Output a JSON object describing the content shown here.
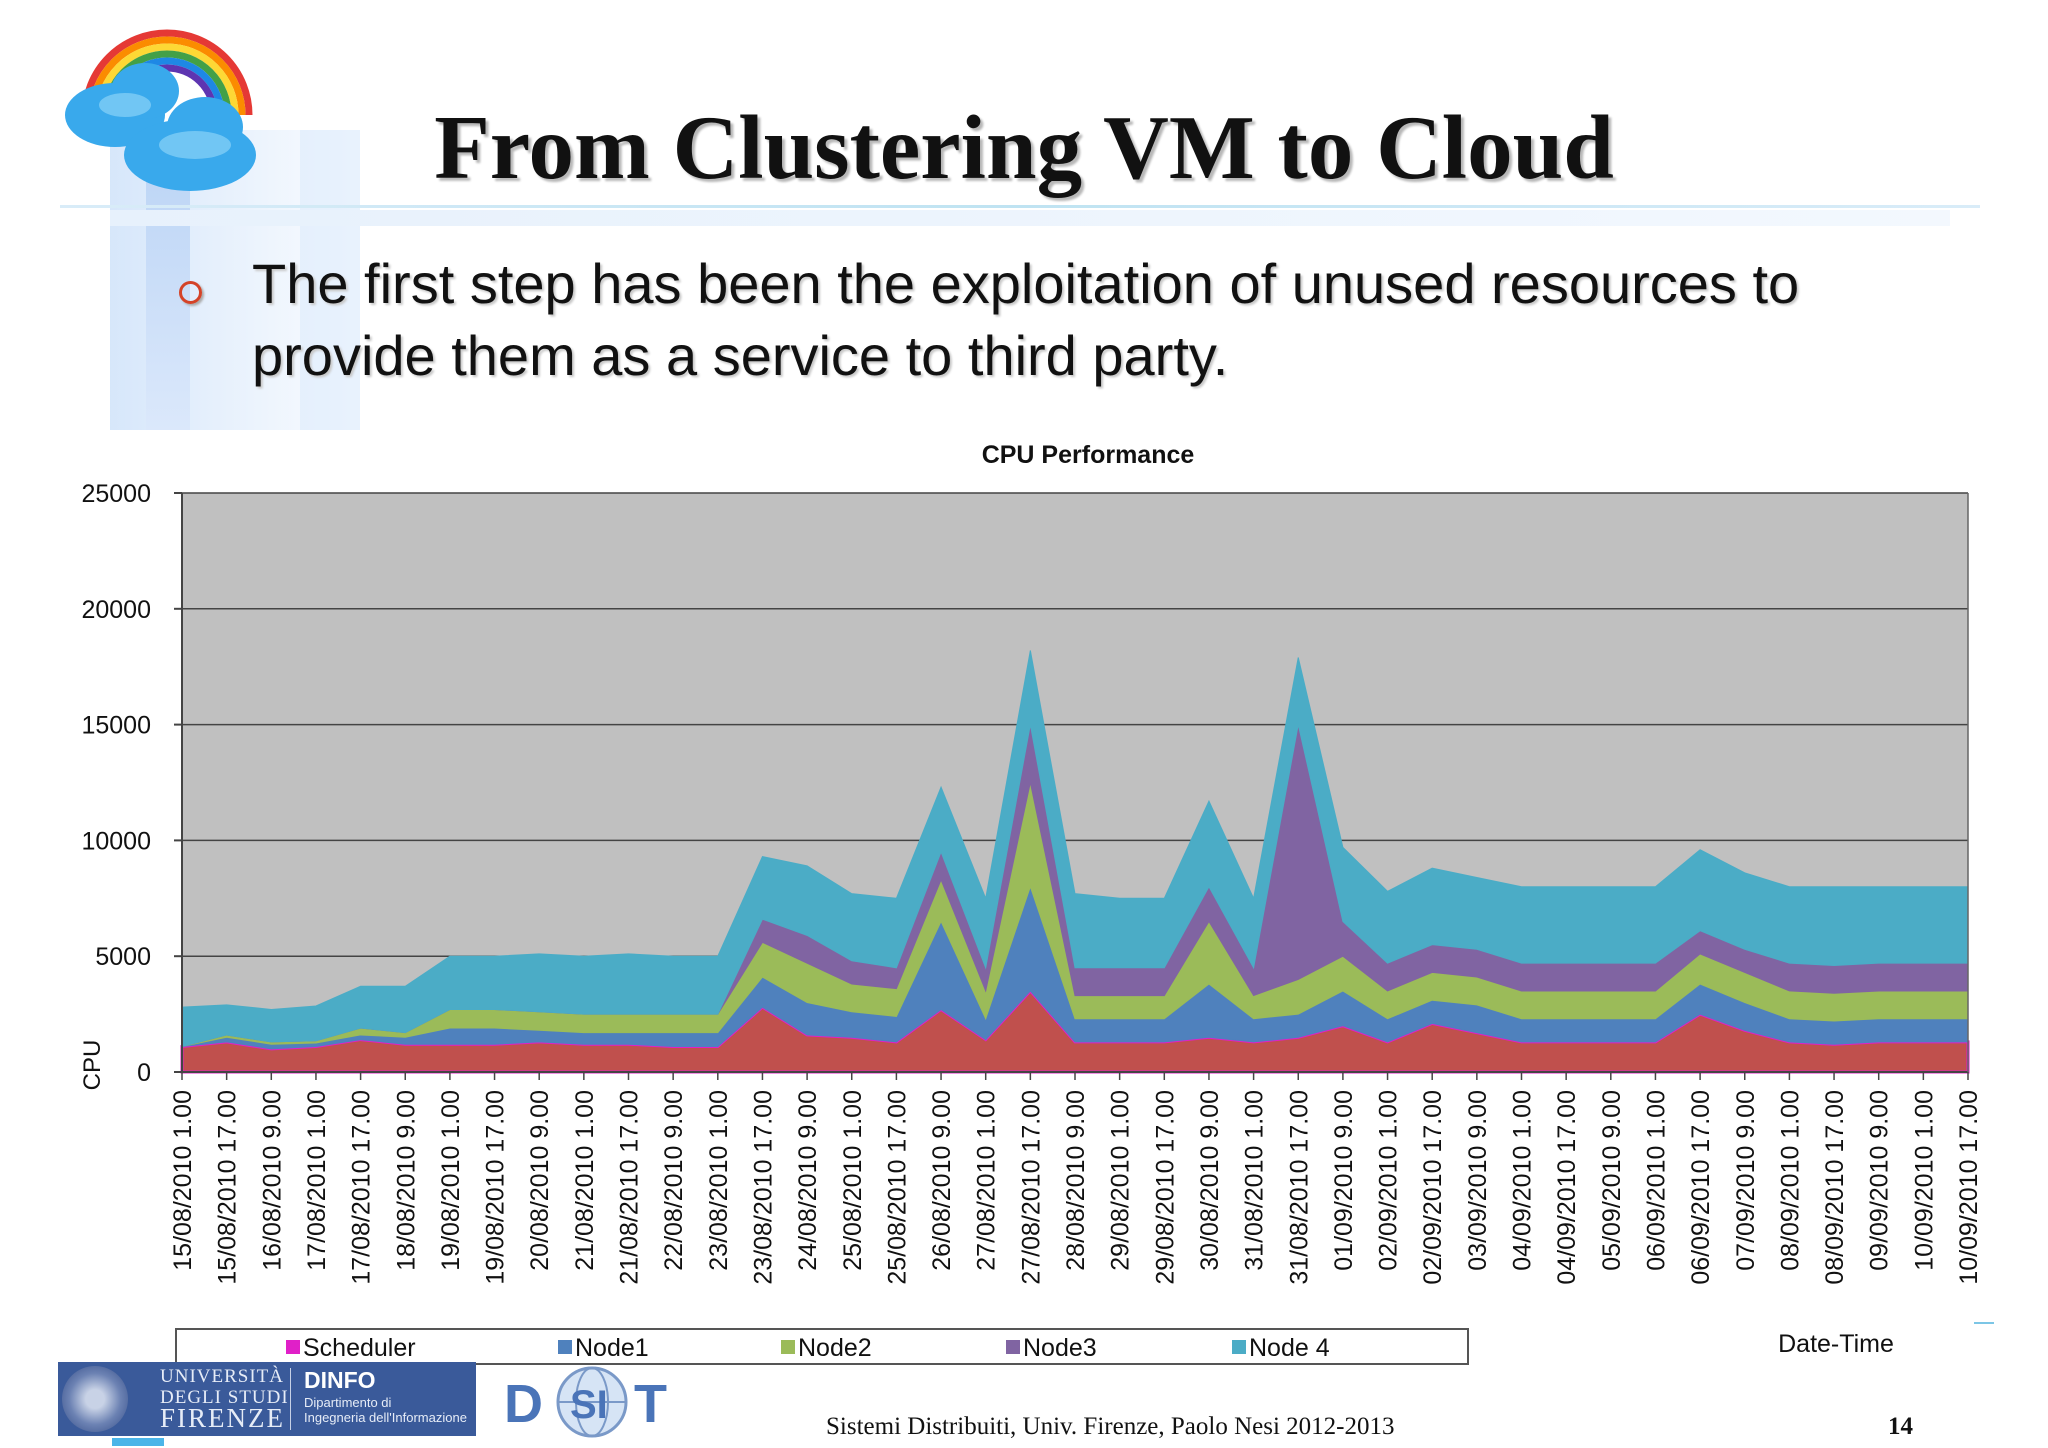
{
  "slide": {
    "title": "From Clustering VM to Cloud",
    "bullet": "The first step has been the exploitation of unused resources to provide them as a service to third party.",
    "footer": "Sistemi Distribuiti, Univ. Firenze, Paolo Nesi 2012-2013",
    "page_number": "14",
    "logos": {
      "unifi_line1": "UNIVERSITÀ",
      "unifi_line2": "DEGLI STUDI",
      "unifi_line3": "FIRENZE",
      "dinfo_title": "DINFO",
      "dinfo_sub1": "Dipartimento di",
      "dinfo_sub2": "Ingegneria dell'Informazione",
      "disit_left": "D",
      "disit_mid": "SI",
      "disit_right": "T"
    },
    "icons": [
      "rainbow-cloud-logo",
      "university-seal-icon",
      "disit-globe-icon"
    ]
  },
  "chart_data": {
    "type": "area",
    "stacked": true,
    "title": "CPU Performance",
    "ylabel": "CPU",
    "xlabel": "Date-Time",
    "ylim": [
      0,
      25000
    ],
    "yticks": [
      0,
      5000,
      10000,
      15000,
      20000,
      25000
    ],
    "grid": true,
    "legend_position": "bottom",
    "x_tick_labels": [
      "15/08/2010 1.00",
      "15/08/2010 17.00",
      "16/08/2010 9.00",
      "17/08/2010 1.00",
      "17/08/2010 17.00",
      "18/08/2010 9.00",
      "19/08/2010 1.00",
      "19/08/2010 17.00",
      "20/08/2010 9.00",
      "21/08/2010 1.00",
      "21/08/2010 17.00",
      "22/08/2010 9.00",
      "23/08/2010 1.00",
      "23/08/2010 17.00",
      "24/08/2010 9.00",
      "25/08/2010 1.00",
      "25/08/2010 17.00",
      "26/08/2010 9.00",
      "27/08/2010 1.00",
      "27/08/2010 17.00",
      "28/08/2010 9.00",
      "29/08/2010 1.00",
      "29/08/2010 17.00",
      "30/08/2010 9.00",
      "31/08/2010 1.00",
      "31/08/2010 17.00",
      "01/09/2010 9.00",
      "02/09/2010 1.00",
      "02/09/2010 17.00",
      "03/09/2010 9.00",
      "04/09/2010 1.00",
      "04/09/2010 17.00",
      "05/09/2010 9.00",
      "06/09/2010 1.00",
      "06/09/2010 17.00",
      "07/09/2010 9.00",
      "08/09/2010 1.00",
      "08/09/2010 17.00",
      "09/09/2010 9.00",
      "10/09/2010 1.00",
      "10/09/2010 17.00"
    ],
    "series": [
      {
        "name": "Scheduler",
        "color": "#e020c8",
        "fill": "#c0504d",
        "values": [
          1100,
          1300,
          1000,
          1100,
          1400,
          1200,
          1200,
          1200,
          1300,
          1200,
          1200,
          1100,
          1100,
          2800,
          1600,
          1500,
          1300,
          2700,
          1400,
          3500,
          1300,
          1300,
          1300,
          1500,
          1300,
          1500,
          2000,
          1300,
          2100,
          1700,
          1300,
          1300,
          1300,
          1300,
          2500,
          1800,
          1300,
          1200,
          1300,
          1300,
          1300
        ]
      },
      {
        "name": "Node1",
        "color": "#4f81bd",
        "values": [
          0,
          200,
          200,
          150,
          200,
          300,
          700,
          700,
          500,
          500,
          500,
          600,
          600,
          1300,
          1400,
          1100,
          1100,
          3800,
          900,
          4500,
          1000,
          1000,
          1000,
          2300,
          1000,
          1000,
          1500,
          1000,
          1000,
          1200,
          1000,
          1000,
          1000,
          1000,
          1300,
          1200,
          1000,
          1000,
          1000,
          1000,
          1000
        ]
      },
      {
        "name": "Node2",
        "color": "#9bbb59",
        "values": [
          0,
          100,
          100,
          100,
          300,
          200,
          800,
          800,
          800,
          800,
          800,
          800,
          800,
          1500,
          1700,
          1200,
          1200,
          1800,
          1200,
          4500,
          1000,
          1000,
          1000,
          2700,
          1000,
          1500,
          1500,
          1200,
          1200,
          1200,
          1200,
          1200,
          1200,
          1200,
          1300,
          1300,
          1200,
          1200,
          1200,
          1200,
          1200
        ]
      },
      {
        "name": "Node3",
        "color": "#8064a2",
        "values": [
          0,
          0,
          0,
          0,
          0,
          0,
          0,
          0,
          0,
          0,
          0,
          0,
          0,
          1000,
          1200,
          1000,
          900,
          1200,
          1000,
          2500,
          1200,
          1200,
          1200,
          1500,
          1200,
          11000,
          1500,
          1200,
          1200,
          1200,
          1200,
          1200,
          1200,
          1200,
          1000,
          1000,
          1200,
          1200,
          1200,
          1200,
          1200
        ]
      },
      {
        "name": "Node 4",
        "color": "#4bacc6",
        "values": [
          1700,
          1300,
          1400,
          1500,
          1800,
          2000,
          2300,
          2300,
          2500,
          2500,
          2600,
          2500,
          2500,
          2700,
          3000,
          2900,
          3000,
          2800,
          3000,
          3200,
          3200,
          3000,
          3000,
          3700,
          3000,
          2900,
          3200,
          3100,
          3300,
          3100,
          3300,
          3300,
          3300,
          3300,
          3500,
          3300,
          3300,
          3400,
          3300,
          3300,
          3300
        ]
      }
    ]
  }
}
